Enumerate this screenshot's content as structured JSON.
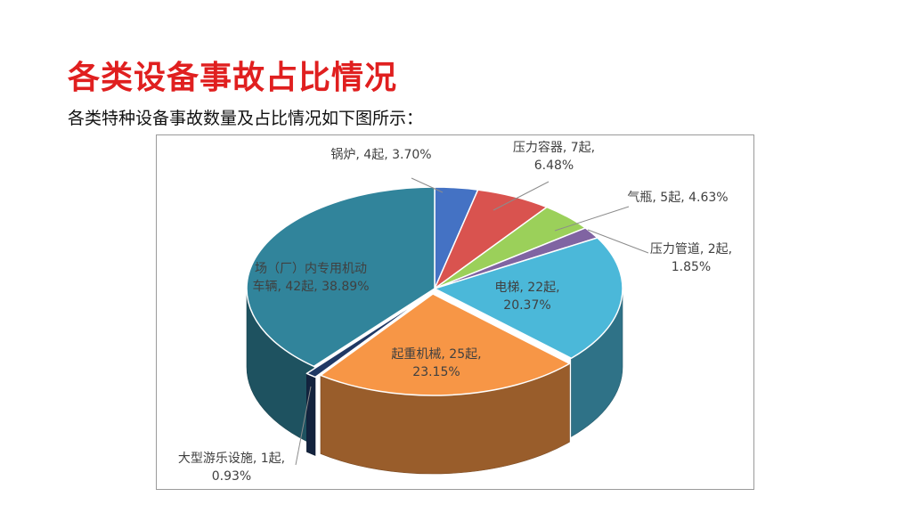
{
  "page": {
    "title": "各类设备事故占比情况",
    "subtitle": "各类特种设备事故数量及占比情况如下图所示："
  },
  "chart_data": {
    "type": "pie",
    "style": "3d",
    "unit": "起",
    "slices": [
      {
        "name": "锅炉",
        "count": 4,
        "percent": "3.70%",
        "color": "#4472c4",
        "label_lines": [
          "锅炉, 4起, 3.70%"
        ]
      },
      {
        "name": "压力容器",
        "count": 7,
        "percent": "6.48%",
        "color": "#d9534f",
        "label_lines": [
          "压力容器, 7起,",
          "6.48%"
        ]
      },
      {
        "name": "气瓶",
        "count": 5,
        "percent": "4.63%",
        "color": "#9bd05a",
        "label_lines": [
          "气瓶, 5起, 4.63%"
        ]
      },
      {
        "name": "压力管道",
        "count": 2,
        "percent": "1.85%",
        "color": "#8064a2",
        "label_lines": [
          "压力管道, 2起,",
          "1.85%"
        ]
      },
      {
        "name": "电梯",
        "count": 22,
        "percent": "20.37%",
        "color": "#4bb8d9",
        "label_lines": [
          "电梯, 22起,",
          "20.37%"
        ]
      },
      {
        "name": "起重机械",
        "count": 25,
        "percent": "23.15%",
        "color": "#f79646",
        "label_lines": [
          "起重机械, 25起,",
          "23.15%"
        ]
      },
      {
        "name": "大型游乐设施",
        "count": 1,
        "percent": "0.93%",
        "color": "#1f3864",
        "label_lines": [
          "大型游乐设施, 1起,",
          "0.93%"
        ]
      },
      {
        "name": "场（厂）内专用机动车辆",
        "count": 42,
        "percent": "38.89%",
        "color": "#31849b",
        "label_lines": [
          "场（厂）内专用机动",
          "车辆, 42起, 38.89%"
        ]
      }
    ]
  }
}
